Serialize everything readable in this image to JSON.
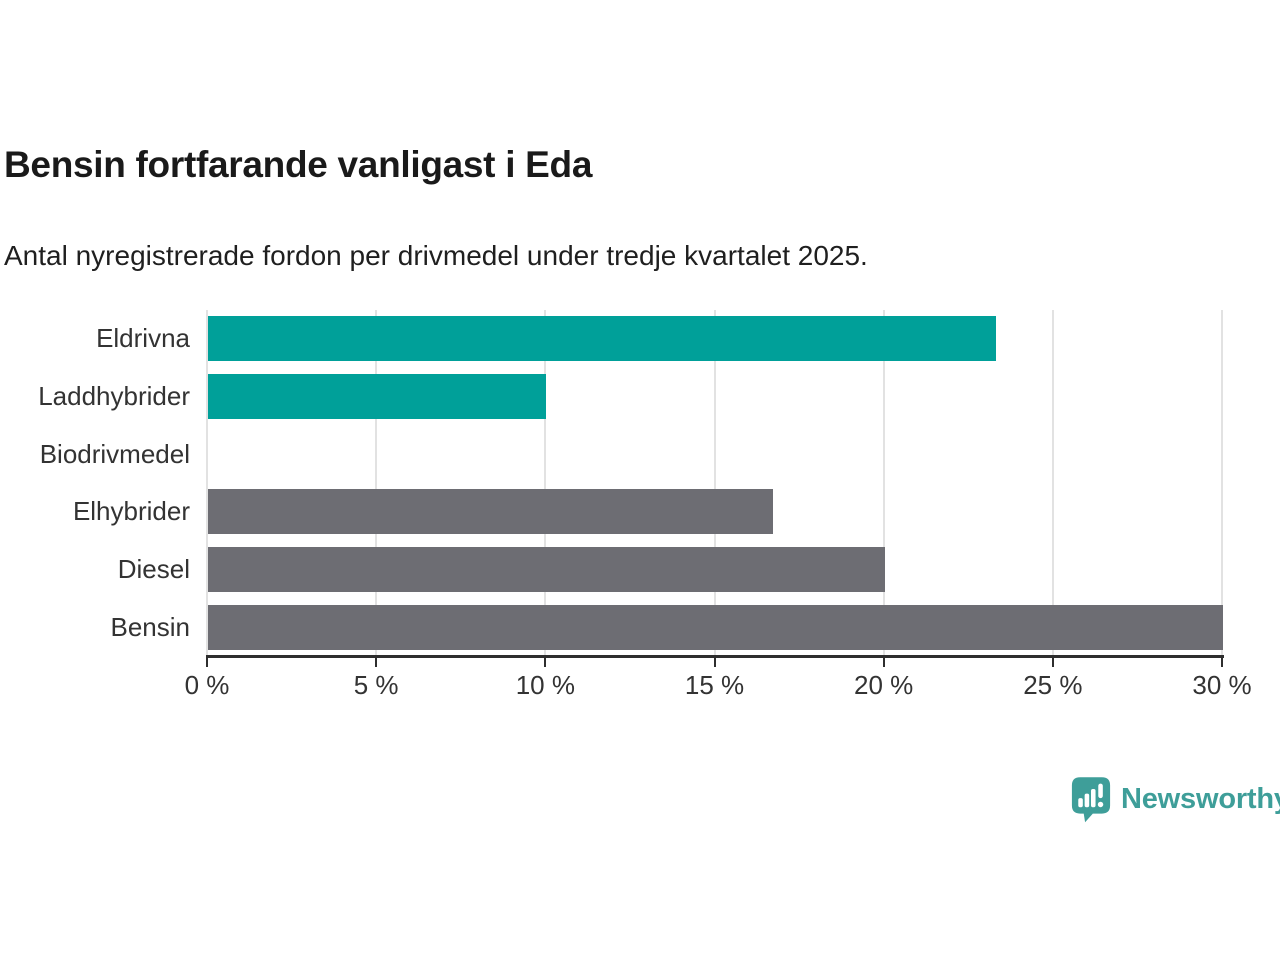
{
  "header": {
    "title": "Bensin fortfarande vanligast i Eda",
    "subtitle": "Antal nyregistrerade fordon per drivmedel under tredje kvartalet 2025."
  },
  "chart_data": {
    "type": "bar",
    "orientation": "horizontal",
    "title": "Bensin fortfarande vanligast i Eda",
    "subtitle": "Antal nyregistrerade fordon per drivmedel under tredje kvartalet 2025.",
    "categories": [
      "Eldrivna",
      "Laddhybrider",
      "Biodrivmedel",
      "Elhybrider",
      "Diesel",
      "Bensin"
    ],
    "values": [
      23.3,
      10,
      0,
      16.7,
      20,
      30
    ],
    "unit": "%",
    "bar_colors": [
      "#00a099",
      "#00a099",
      "#6d6d73",
      "#6d6d73",
      "#6d6d73",
      "#6d6d73"
    ],
    "highlight_color": "#00a099",
    "default_color": "#6d6d73",
    "xlabel": "",
    "ylabel": "",
    "xlim": [
      0,
      30
    ],
    "x_ticks": [
      0,
      5,
      10,
      15,
      20,
      25,
      30
    ],
    "x_tick_labels": [
      "0 %",
      "5 %",
      "10 %",
      "15 %",
      "20 %",
      "25 %",
      "30 %"
    ],
    "grid": true,
    "gridline_color": "#e2e2e2",
    "axis_color": "#2e2e2e",
    "label_color": "#333333",
    "legend_position": "none"
  },
  "logo": {
    "text": "Newsworthy",
    "color": "#3e9e99",
    "icon": "newsworthy-speech-bubble-chart-icon"
  }
}
